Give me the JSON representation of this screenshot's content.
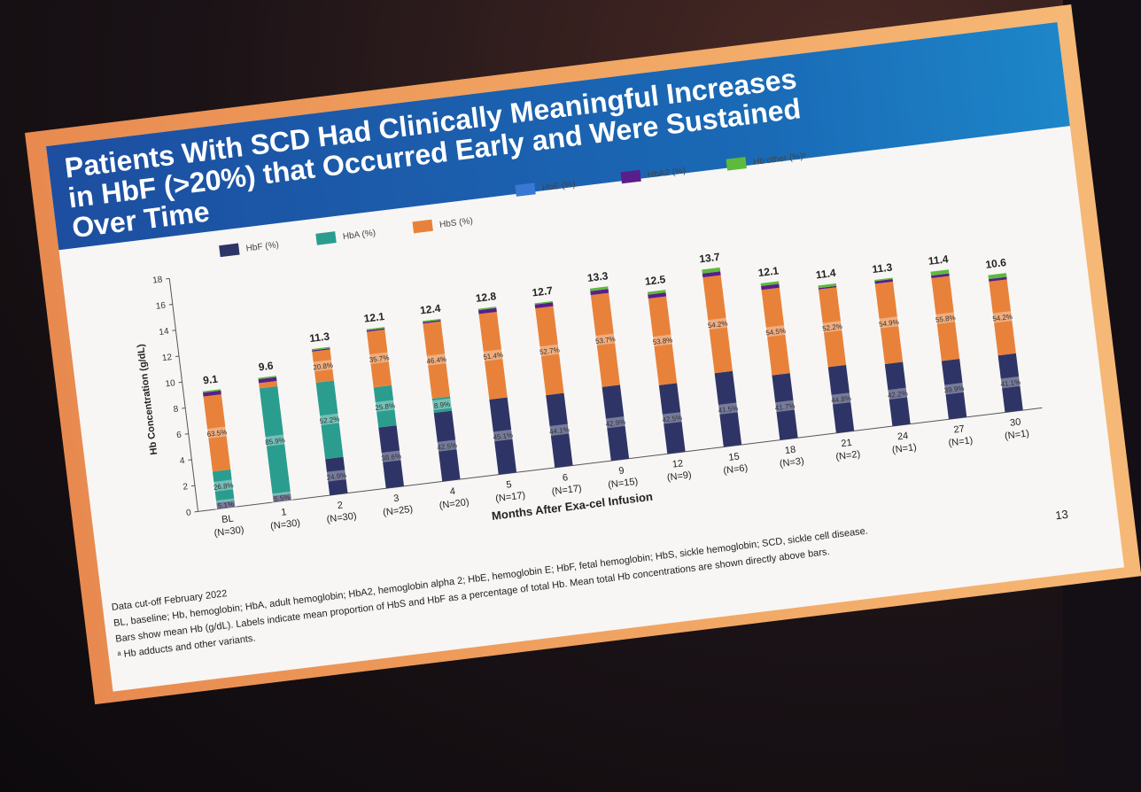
{
  "slide": {
    "title_lines": [
      "Patients With SCD Had Clinically Meaningful Increases",
      "in HbF (>20%) that Occurred Early and Were Sustained",
      "Over Time"
    ],
    "page_number": "13",
    "footnotes": [
      "Data cut-off February 2022",
      "BL, baseline; Hb, hemoglobin; HbA, adult hemoglobin; HbA2, hemoglobin alpha 2; HbE, hemoglobin E; HbF, fetal hemoglobin; HbS, sickle hemoglobin; SCD, sickle cell disease.",
      "Bars show mean Hb (g/dL). Labels indicate mean proportion of HbS and HbF as a percentage of total Hb. Mean total Hb concentrations are shown directly above bars.",
      "ᵃ Hb adducts and other variants."
    ]
  },
  "chart_data": {
    "type": "bar",
    "stacked": true,
    "xlabel": "Months After Exa-cel Infusion",
    "ylabel": "Hb Concentration (g/dL)",
    "ylim": [
      0,
      18
    ],
    "yticks": [
      0,
      2,
      4,
      6,
      8,
      10,
      12,
      14,
      16,
      18
    ],
    "categories": [
      "BL",
      "1",
      "2",
      "3",
      "4",
      "5",
      "6",
      "9",
      "12",
      "15",
      "18",
      "21",
      "24",
      "27",
      "30"
    ],
    "n_labels": [
      "(N=30)",
      "(N=30)",
      "(N=30)",
      "(N=25)",
      "(N=20)",
      "(N=17)",
      "(N=17)",
      "(N=15)",
      "(N=9)",
      "(N=6)",
      "(N=3)",
      "(N=2)",
      "(N=1)",
      "(N=1)",
      "(N=1)"
    ],
    "totals": [
      "9.1",
      "9.6",
      "11.3",
      "12.1",
      "12.4",
      "12.8",
      "12.7",
      "13.3",
      "12.5",
      "13.7",
      "12.1",
      "11.4",
      "11.3",
      "11.4",
      "10.6"
    ],
    "hbf_labels": [
      "5.1%",
      "5.5%",
      "24.9%",
      "38.6%",
      "42.5%",
      "45.1%",
      "44.1%",
      "42.9%",
      "42.5%",
      "41.5%",
      "41.7%",
      "44.8%",
      "42.2%",
      "39.9%",
      "41.1%"
    ],
    "hbs_labels": [
      "63.5%",
      "",
      "20.8%",
      "35.7%",
      "46.4%",
      "51.4%",
      "52.7%",
      "53.7%",
      "53.8%",
      "54.2%",
      "54.5%",
      "52.2%",
      "54.9%",
      "55.8%",
      "54.2%"
    ],
    "hba_labels": [
      "26.8%",
      "85.9%",
      "52.2%",
      "25.8%",
      "8.9%",
      "",
      "",
      "",
      "",
      "",
      "",
      "",
      "",
      "",
      ""
    ],
    "legend_position": "top",
    "series": [
      {
        "name": "HbF (%)",
        "color": "#2e3566",
        "values": [
          0.5,
          0.5,
          2.8,
          4.7,
          5.3,
          5.8,
          5.6,
          5.7,
          5.3,
          5.7,
          5.0,
          5.1,
          4.8,
          4.5,
          4.4
        ]
      },
      {
        "name": "HbA (%)",
        "color": "#2a9d8f",
        "values": [
          2.4,
          8.3,
          5.9,
          3.1,
          1.1,
          0.0,
          0.0,
          0.0,
          0.0,
          0.0,
          0.0,
          0.0,
          0.0,
          0.0,
          0.0
        ]
      },
      {
        "name": "HbS (%)",
        "color": "#e8823a",
        "values": [
          5.8,
          0.4,
          2.4,
          4.3,
          5.8,
          6.6,
          6.7,
          7.1,
          6.7,
          7.4,
          6.6,
          6.0,
          6.2,
          6.4,
          5.7
        ]
      },
      {
        "name": "HbE (%)",
        "color": "#3a78d4",
        "values": [
          0.0,
          0.0,
          0.0,
          0.0,
          0.0,
          0.0,
          0.0,
          0.0,
          0.0,
          0.0,
          0.0,
          0.0,
          0.0,
          0.0,
          0.0
        ]
      },
      {
        "name": "HbA2 (%)",
        "color": "#5a1e8a",
        "values": [
          0.3,
          0.3,
          0.1,
          0.1,
          0.1,
          0.3,
          0.3,
          0.3,
          0.3,
          0.3,
          0.3,
          0.1,
          0.2,
          0.2,
          0.2
        ]
      },
      {
        "name": "Hb other (%)ᵃ",
        "color": "#5cbb3a",
        "values": [
          0.1,
          0.1,
          0.1,
          0.1,
          0.1,
          0.1,
          0.1,
          0.2,
          0.2,
          0.3,
          0.2,
          0.2,
          0.1,
          0.3,
          0.3
        ]
      }
    ]
  }
}
